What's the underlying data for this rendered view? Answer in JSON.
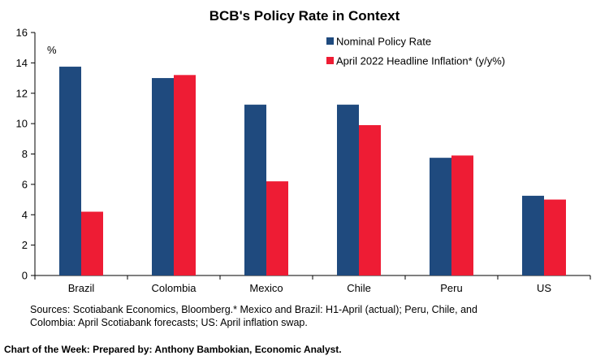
{
  "chart_data": {
    "type": "bar",
    "title": "BCB's Policy Rate in Context",
    "ylabel": "%",
    "ylim": [
      0,
      16
    ],
    "yticks": [
      0,
      2,
      4,
      6,
      8,
      10,
      12,
      14,
      16
    ],
    "categories": [
      "Brazil",
      "Colombia",
      "Mexico",
      "Chile",
      "Peru",
      "US"
    ],
    "legend_position": "top-right",
    "grid": false,
    "series": [
      {
        "name": "Nominal Policy Rate",
        "color": "#1f4a7e",
        "values": [
          13.75,
          13.0,
          11.25,
          11.25,
          7.75,
          5.25
        ]
      },
      {
        "name": "April 2022 Headline Inflation* (y/y%)",
        "color": "#ee1c34",
        "values": [
          4.2,
          13.2,
          6.2,
          9.9,
          7.9,
          5.0
        ]
      }
    ]
  },
  "notes": {
    "sources_line1": "Sources: Scotiabank Economics, Bloomberg.* Mexico and Brazil: H1-April (actual); Peru, Chile, and",
    "sources_line2": "Colombia: April Scotiabank forecasts; US: April inflation swap."
  },
  "footer": "Chart of the Week:  Prepared by: Anthony Bambokian, Economic Analyst."
}
